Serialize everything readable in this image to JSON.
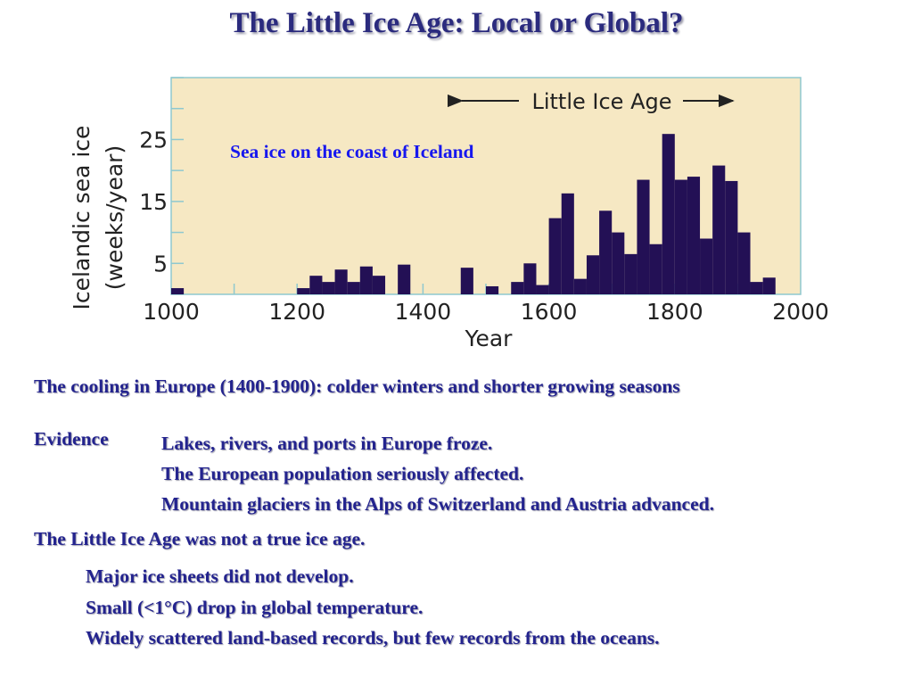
{
  "title": "The Little Ice Age: Local or Global?",
  "chart_data": {
    "type": "bar",
    "ylabel_line1": "Icelandic sea ice",
    "ylabel_line2": "(weeks/year)",
    "xlabel": "Year",
    "annotation": "Sea ice on the coast of Iceland",
    "period_label": "Little Ice Age",
    "period_range": [
      1580,
      1930
    ],
    "xlim": [
      1000,
      2000
    ],
    "ylim": [
      0,
      35
    ],
    "x_ticks": [
      1000,
      1200,
      1400,
      1600,
      1800,
      2000
    ],
    "y_ticks": [
      5,
      15,
      25
    ],
    "bin_width": 20,
    "bars": [
      {
        "year": 1000,
        "value": 1
      },
      {
        "year": 1200,
        "value": 1
      },
      {
        "year": 1220,
        "value": 3
      },
      {
        "year": 1240,
        "value": 2
      },
      {
        "year": 1260,
        "value": 4
      },
      {
        "year": 1280,
        "value": 2
      },
      {
        "year": 1300,
        "value": 4.5
      },
      {
        "year": 1320,
        "value": 3
      },
      {
        "year": 1360,
        "value": 4.8
      },
      {
        "year": 1460,
        "value": 4.3
      },
      {
        "year": 1500,
        "value": 1.3
      },
      {
        "year": 1540,
        "value": 2
      },
      {
        "year": 1560,
        "value": 5
      },
      {
        "year": 1580,
        "value": 1.5
      },
      {
        "year": 1600,
        "value": 12.3
      },
      {
        "year": 1620,
        "value": 16.3
      },
      {
        "year": 1640,
        "value": 2.5
      },
      {
        "year": 1660,
        "value": 6.3
      },
      {
        "year": 1680,
        "value": 13.5
      },
      {
        "year": 1700,
        "value": 10
      },
      {
        "year": 1720,
        "value": 6.5
      },
      {
        "year": 1740,
        "value": 18.5
      },
      {
        "year": 1760,
        "value": 8.1
      },
      {
        "year": 1780,
        "value": 25.9
      },
      {
        "year": 1800,
        "value": 18.5
      },
      {
        "year": 1820,
        "value": 19
      },
      {
        "year": 1840,
        "value": 9
      },
      {
        "year": 1860,
        "value": 20.8
      },
      {
        "year": 1880,
        "value": 18.3
      },
      {
        "year": 1900,
        "value": 10
      },
      {
        "year": 1920,
        "value": 2
      },
      {
        "year": 1940,
        "value": 2.7
      }
    ]
  },
  "cooling_line": "The cooling in Europe (1400-1900): colder winters and shorter growing seasons",
  "evidence": {
    "label": "Evidence",
    "items": [
      "Lakes, rivers, and ports in Europe froze.",
      "The European population seriously affected.",
      "Mountain glaciers in the Alps of Switzerland and Austria advanced."
    ]
  },
  "not_true_ice_age": "The Little Ice Age was not a true ice age.",
  "reasons": [
    "Major ice sheets did not develop.",
    "Small (<1°C) drop in global temperature.",
    "Widely scattered land-based records, but few records from the oceans."
  ]
}
